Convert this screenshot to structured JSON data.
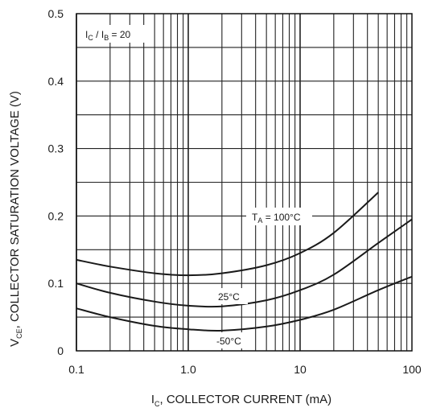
{
  "chart_data": {
    "type": "line",
    "title": "",
    "xlabel": {
      "main": "I",
      "sub": "C",
      "rest": ", COLLECTOR CURRENT (mA)"
    },
    "ylabel": {
      "main": "V",
      "sub": "CE",
      "rest": ", COLLECTOR SATURATION VOLTAGE (V)"
    },
    "x_scale": "log",
    "xlim": [
      0.1,
      100
    ],
    "ylim": [
      0,
      0.5
    ],
    "x_ticks": [
      "0.1",
      "1.0",
      "10",
      "100"
    ],
    "y_ticks": [
      "0",
      "0.1",
      "0.2",
      "0.3",
      "0.4",
      "0.5"
    ],
    "grid": true,
    "condition": {
      "a": "I",
      "a_sub": "C",
      "mid": " / I",
      "b_sub": "B",
      "rest": " = 20"
    },
    "series": [
      {
        "name": {
          "main": "T",
          "sub": "A",
          "rest": " = 100°C"
        },
        "x": [
          0.1,
          0.2,
          0.5,
          1.0,
          2.0,
          5.0,
          10,
          20,
          50
        ],
        "y": [
          0.135,
          0.125,
          0.115,
          0.112,
          0.115,
          0.127,
          0.145,
          0.175,
          0.235
        ]
      },
      {
        "name": {
          "main": "25°C",
          "sub": "",
          "rest": ""
        },
        "x": [
          0.1,
          0.2,
          0.5,
          1.0,
          2.0,
          5.0,
          10,
          20,
          50,
          100
        ],
        "y": [
          0.1,
          0.086,
          0.073,
          0.067,
          0.066,
          0.075,
          0.09,
          0.113,
          0.16,
          0.195
        ]
      },
      {
        "name": {
          "main": "-50°C",
          "sub": "",
          "rest": ""
        },
        "x": [
          0.1,
          0.2,
          0.5,
          1.0,
          2.0,
          5.0,
          10,
          20,
          50,
          100
        ],
        "y": [
          0.063,
          0.05,
          0.037,
          0.032,
          0.03,
          0.036,
          0.046,
          0.061,
          0.09,
          0.11
        ]
      }
    ]
  }
}
